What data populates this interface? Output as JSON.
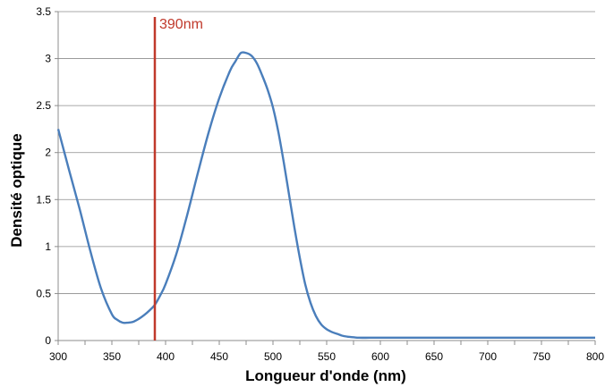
{
  "chart_data": {
    "type": "line",
    "title": "",
    "xlabel": "Longueur d'onde (nm)",
    "ylabel": "Densité optique",
    "xlim": [
      300,
      800
    ],
    "ylim": [
      0,
      3.5
    ],
    "x_ticks": [
      300,
      350,
      400,
      450,
      500,
      550,
      600,
      650,
      700,
      750,
      800
    ],
    "y_ticks": [
      0,
      0.5,
      1,
      1.5,
      2,
      2.5,
      3,
      3.5
    ],
    "y_tick_labels": [
      "0",
      "0.5",
      "1",
      "1.5",
      "2",
      "2.5",
      "3",
      "3.5"
    ],
    "grid": "horizontal",
    "legend": "none",
    "series": [
      {
        "color": "#4a7ebb",
        "x": [
          300,
          310,
          320,
          330,
          340,
          350,
          355,
          360,
          365,
          370,
          375,
          380,
          385,
          390,
          395,
          400,
          410,
          420,
          430,
          440,
          450,
          460,
          465,
          470,
          475,
          480,
          485,
          490,
          495,
          500,
          505,
          510,
          515,
          520,
          525,
          530,
          535,
          540,
          545,
          550,
          555,
          560,
          565,
          570,
          575,
          580,
          590,
          600,
          620,
          650,
          700,
          750,
          800
        ],
        "y": [
          2.25,
          1.82,
          1.4,
          0.95,
          0.55,
          0.28,
          0.22,
          0.19,
          0.19,
          0.2,
          0.23,
          0.27,
          0.32,
          0.38,
          0.48,
          0.6,
          0.92,
          1.33,
          1.78,
          2.21,
          2.58,
          2.87,
          2.97,
          3.06,
          3.06,
          3.03,
          2.95,
          2.82,
          2.67,
          2.48,
          2.22,
          1.9,
          1.55,
          1.2,
          0.88,
          0.6,
          0.4,
          0.26,
          0.17,
          0.12,
          0.09,
          0.07,
          0.05,
          0.04,
          0.035,
          0.03,
          0.03,
          0.03,
          0.03,
          0.03,
          0.03,
          0.03,
          0.03
        ]
      }
    ],
    "annotations": [
      {
        "x": 390,
        "label": "390nm",
        "color": "#c0392b"
      }
    ]
  }
}
